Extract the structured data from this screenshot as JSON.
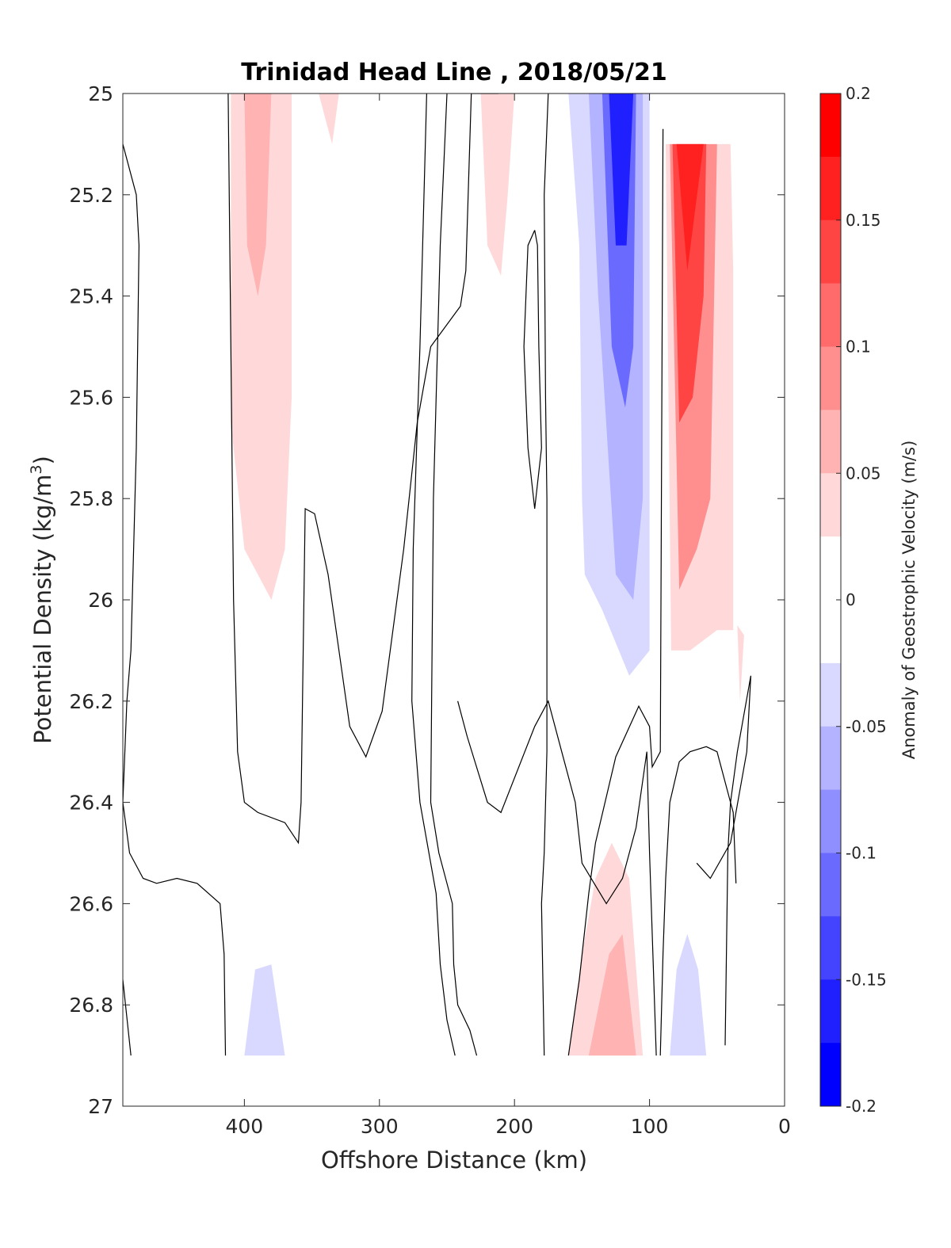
{
  "chart_data": {
    "type": "contour",
    "title": "Trinidad Head Line , 2018/05/21",
    "xlabel": "Offshore Distance (km)",
    "ylabel_main": "Potential Density (kg/m",
    "ylabel_sup": "3",
    "ylabel_close": ")",
    "xlim": [
      490,
      0
    ],
    "ylim": [
      25,
      27
    ],
    "x_reversed": true,
    "y_reversed": true,
    "x_ticks": [
      "400",
      "300",
      "200",
      "100",
      "0"
    ],
    "x_tick_values": [
      400,
      300,
      200,
      100,
      0
    ],
    "y_ticks": [
      "25",
      "25.2",
      "25.4",
      "25.6",
      "25.8",
      "26",
      "26.2",
      "26.4",
      "26.6",
      "26.8",
      "27"
    ],
    "y_tick_values": [
      25,
      25.2,
      25.4,
      25.6,
      25.8,
      26,
      26.2,
      26.4,
      26.6,
      26.8,
      27
    ],
    "colorbar": {
      "label": "Anomaly of Geostrophic Velocity (m/s)",
      "range": [
        -0.2,
        0.2
      ],
      "ticks": [
        "0.2",
        "0.15",
        "0.1",
        "0.05",
        "0",
        "-0.05",
        "-0.1",
        "-0.15",
        "-0.2"
      ],
      "tick_values": [
        0.2,
        0.15,
        0.1,
        0.05,
        0,
        -0.05,
        -0.1,
        -0.15,
        -0.2
      ],
      "levels": [
        {
          "color": "#ff0000"
        },
        {
          "color": "#ff2020"
        },
        {
          "color": "#ff4444"
        },
        {
          "color": "#ff6a6a"
        },
        {
          "color": "#ff8f8f"
        },
        {
          "color": "#ffb3b3"
        },
        {
          "color": "#ffd9d9"
        },
        {
          "color": "#ffffff"
        },
        {
          "color": "#ffffff"
        },
        {
          "color": "#d9d9ff"
        },
        {
          "color": "#b3b3ff"
        },
        {
          "color": "#8f8fff"
        },
        {
          "color": "#6a6aff"
        },
        {
          "color": "#4444ff"
        },
        {
          "color": "#2020ff"
        },
        {
          "color": "#0000ff"
        }
      ]
    },
    "filled_regions": [
      {
        "value": 0.05,
        "color": "#ffd9d9",
        "points": [
          [
            375,
            25
          ],
          [
            410,
            25
          ],
          [
            410,
            25.65
          ],
          [
            400,
            25.9
          ],
          [
            380,
            26
          ],
          [
            370,
            25.9
          ],
          [
            365,
            25.6
          ],
          [
            365,
            25
          ]
        ]
      },
      {
        "value": 0.1,
        "color": "#ffb3b3",
        "points": [
          [
            380,
            25
          ],
          [
            400,
            25
          ],
          [
            398,
            25.3
          ],
          [
            390,
            25.4
          ],
          [
            384,
            25.3
          ]
        ]
      },
      {
        "value": 0.05,
        "color": "#ffd9d9",
        "points": [
          [
            330,
            25
          ],
          [
            345,
            25
          ],
          [
            340,
            25.05
          ],
          [
            335,
            25.1
          ]
        ]
      },
      {
        "value": 0.05,
        "color": "#ffd9d9",
        "points": [
          [
            200,
            25
          ],
          [
            225,
            25
          ],
          [
            220,
            25.3
          ],
          [
            210,
            25.36
          ],
          [
            205,
            25.2
          ]
        ]
      },
      {
        "value": -0.05,
        "color": "#d9d9ff",
        "points": [
          [
            100,
            25
          ],
          [
            160,
            25
          ],
          [
            152,
            25.3
          ],
          [
            150,
            25.8
          ],
          [
            148,
            25.95
          ],
          [
            135,
            26.02
          ],
          [
            115,
            26.15
          ],
          [
            100,
            26.1
          ],
          [
            100,
            25.2
          ]
        ]
      },
      {
        "value": -0.1,
        "color": "#b3b3ff",
        "points": [
          [
            105,
            25
          ],
          [
            145,
            25
          ],
          [
            138,
            25.4
          ],
          [
            125,
            25.95
          ],
          [
            112,
            26
          ],
          [
            105,
            25.8
          ]
        ]
      },
      {
        "value": -0.15,
        "color": "#6a6aff",
        "points": [
          [
            110,
            25
          ],
          [
            135,
            25
          ],
          [
            128,
            25.5
          ],
          [
            118,
            25.62
          ],
          [
            112,
            25.5
          ]
        ]
      },
      {
        "value": -0.2,
        "color": "#2020ff",
        "points": [
          [
            112,
            25
          ],
          [
            130,
            25
          ],
          [
            125,
            25.3
          ],
          [
            117,
            25.3
          ]
        ]
      },
      {
        "value": 0.05,
        "color": "#ffd9d9",
        "points": [
          [
            40,
            25.1
          ],
          [
            88,
            25.1
          ],
          [
            84,
            26.1
          ],
          [
            70,
            26.1
          ],
          [
            50,
            26.06
          ],
          [
            38,
            26.06
          ],
          [
            38,
            25.35
          ]
        ]
      },
      {
        "value": 0.1,
        "color": "#ff8f8f",
        "points": [
          [
            50,
            25.1
          ],
          [
            85,
            25.1
          ],
          [
            78,
            25.98
          ],
          [
            65,
            25.9
          ],
          [
            55,
            25.8
          ]
        ]
      },
      {
        "value": 0.15,
        "color": "#ff4444",
        "points": [
          [
            58,
            25.1
          ],
          [
            83,
            25.1
          ],
          [
            78,
            25.65
          ],
          [
            68,
            25.6
          ],
          [
            60,
            25.4
          ]
        ]
      },
      {
        "value": 0.2,
        "color": "#ff2020",
        "points": [
          [
            60,
            25.1
          ],
          [
            80,
            25.1
          ],
          [
            72,
            25.35
          ]
        ]
      },
      {
        "value": 0.05,
        "color": "#ffd9d9",
        "points": [
          [
            30,
            26.07
          ],
          [
            35,
            26.05
          ],
          [
            33,
            26.2
          ]
        ]
      },
      {
        "value": 0.05,
        "color": "#ffd9d9",
        "points": [
          [
            105,
            26.9
          ],
          [
            160,
            26.9
          ],
          [
            150,
            26.7
          ],
          [
            140,
            26.55
          ],
          [
            128,
            26.48
          ],
          [
            115,
            26.55
          ]
        ]
      },
      {
        "value": 0.1,
        "color": "#ffb3b3",
        "points": [
          [
            110,
            26.9
          ],
          [
            145,
            26.9
          ],
          [
            130,
            26.7
          ],
          [
            120,
            26.66
          ]
        ]
      },
      {
        "value": -0.05,
        "color": "#d9d9ff",
        "points": [
          [
            58,
            26.9
          ],
          [
            85,
            26.9
          ],
          [
            80,
            26.73
          ],
          [
            72,
            26.66
          ],
          [
            64,
            26.73
          ]
        ]
      },
      {
        "value": -0.05,
        "color": "#d9d9ff",
        "points": [
          [
            370,
            26.9
          ],
          [
            400,
            26.9
          ],
          [
            392,
            26.73
          ],
          [
            380,
            26.72
          ]
        ]
      }
    ],
    "contour_lines": [
      [
        [
          490,
          25.1
        ],
        [
          480,
          25.2
        ],
        [
          478,
          25.3
        ],
        [
          480,
          25.7
        ],
        [
          484,
          26.1
        ],
        [
          487,
          26.2
        ],
        [
          490,
          26.4
        ]
      ],
      [
        [
          490,
          26.4
        ],
        [
          485,
          26.5
        ],
        [
          475,
          26.55
        ],
        [
          465,
          26.56
        ],
        [
          450,
          26.55
        ],
        [
          435,
          26.56
        ],
        [
          418,
          26.6
        ],
        [
          415,
          26.7
        ],
        [
          414,
          26.9
        ]
      ],
      [
        [
          490,
          26.75
        ],
        [
          484,
          26.9
        ]
      ],
      [
        [
          412,
          25
        ],
        [
          410,
          25.5
        ],
        [
          408,
          26
        ],
        [
          405,
          26.3
        ],
        [
          400,
          26.4
        ],
        [
          390,
          26.42
        ],
        [
          370,
          26.44
        ],
        [
          360,
          26.48
        ],
        [
          358,
          26.4
        ],
        [
          355,
          25.82
        ],
        [
          348,
          25.83
        ],
        [
          338,
          25.95
        ],
        [
          330,
          26.1
        ],
        [
          322,
          26.25
        ],
        [
          310,
          26.31
        ],
        [
          298,
          26.22
        ],
        [
          282,
          25.9
        ],
        [
          272,
          25.65
        ],
        [
          262,
          25.5
        ],
        [
          240,
          25.42
        ],
        [
          236,
          25.35
        ],
        [
          232,
          25
        ],
        [
          212,
          25
        ]
      ],
      [
        [
          250,
          25
        ],
        [
          255,
          25.3
        ],
        [
          260,
          25.8
        ],
        [
          262,
          26.4
        ],
        [
          256,
          26.5
        ],
        [
          246,
          26.6
        ],
        [
          245,
          26.72
        ],
        [
          242,
          26.8
        ],
        [
          233,
          26.85
        ],
        [
          228,
          26.9
        ]
      ],
      [
        [
          265,
          25
        ],
        [
          270,
          25.5
        ],
        [
          275,
          25.9
        ],
        [
          276,
          26.2
        ],
        [
          270,
          26.4
        ],
        [
          258,
          26.58
        ],
        [
          255,
          26.72
        ],
        [
          250,
          26.83
        ],
        [
          244,
          26.9
        ]
      ],
      [
        [
          175,
          25
        ],
        [
          178,
          25.2
        ],
        [
          177,
          25.6
        ],
        [
          176,
          25.8
        ],
        [
          176,
          26.3
        ],
        [
          178,
          26.5
        ],
        [
          180,
          26.6
        ],
        [
          178,
          26.9
        ]
      ],
      [
        [
          185,
          25.27
        ],
        [
          190,
          25.3
        ],
        [
          193,
          25.5
        ],
        [
          190,
          25.7
        ],
        [
          185,
          25.82
        ],
        [
          180,
          25.7
        ],
        [
          182,
          25.5
        ],
        [
          183,
          25.3
        ],
        [
          185,
          25.27
        ]
      ],
      [
        [
          160,
          26.9
        ],
        [
          152,
          26.75
        ],
        [
          145,
          26.58
        ],
        [
          140,
          26.48
        ],
        [
          125,
          26.31
        ],
        [
          108,
          26.21
        ],
        [
          100,
          26.25
        ],
        [
          98,
          26.33
        ],
        [
          92,
          26.3
        ],
        [
          90,
          25.07
        ]
      ],
      [
        [
          95,
          26.9
        ],
        [
          100,
          26.5
        ],
        [
          102,
          26.3
        ],
        [
          110,
          26.45
        ],
        [
          120,
          26.55
        ],
        [
          132,
          26.6
        ],
        [
          150,
          26.52
        ],
        [
          155,
          26.4
        ],
        [
          165,
          26.3
        ],
        [
          175,
          26.2
        ],
        [
          185,
          26.25
        ],
        [
          210,
          26.42
        ],
        [
          220,
          26.4
        ],
        [
          235,
          26.27
        ],
        [
          242,
          26.2
        ]
      ],
      [
        [
          44,
          26.88
        ],
        [
          42,
          26.5
        ],
        [
          40,
          26.4
        ],
        [
          35,
          26.3
        ],
        [
          25,
          26.15
        ],
        [
          28,
          26.3
        ],
        [
          40,
          26.48
        ],
        [
          55,
          26.55
        ],
        [
          65,
          26.52
        ]
      ],
      [
        [
          36,
          26.56
        ],
        [
          38,
          26.42
        ],
        [
          50,
          26.3
        ],
        [
          58,
          26.29
        ],
        [
          70,
          26.3
        ],
        [
          78,
          26.32
        ],
        [
          85,
          26.4
        ],
        [
          88,
          26.55
        ],
        [
          90,
          26.7
        ],
        [
          92,
          26.9
        ]
      ]
    ]
  }
}
